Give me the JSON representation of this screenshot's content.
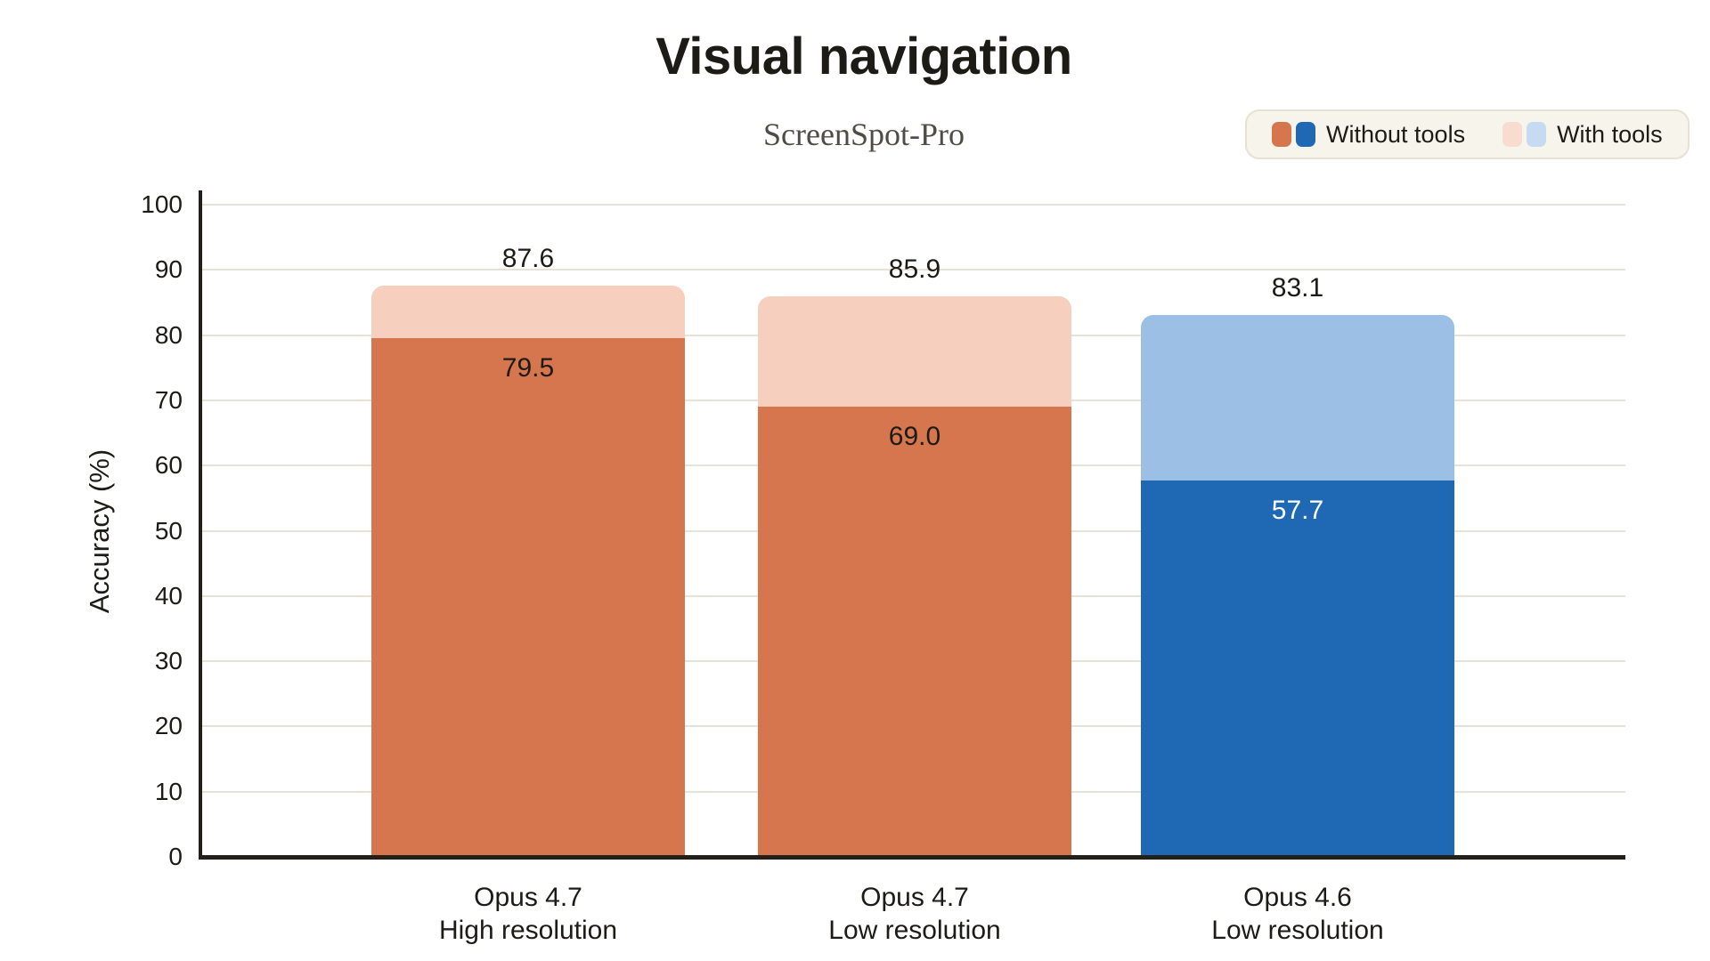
{
  "chart_data": {
    "type": "bar",
    "stacked": true,
    "title": "Visual navigation",
    "subtitle": "ScreenSpot-Pro",
    "xlabel": "",
    "ylabel": "Accuracy (%)",
    "ylim": [
      0,
      100
    ],
    "ytick_step": 10,
    "yticks": [
      0,
      10,
      20,
      30,
      40,
      50,
      60,
      70,
      80,
      90,
      100
    ],
    "grid": "horizontal",
    "legend_position": "top-right",
    "categories": [
      "Opus 4.7 High resolution",
      "Opus 4.7 Low resolution",
      "Opus 4.6 Low resolution"
    ],
    "series": [
      {
        "name": "Without tools",
        "values": [
          79.5,
          69.0,
          57.7
        ]
      },
      {
        "name": "With tools",
        "values": [
          87.6,
          85.9,
          83.1
        ],
        "note": "stacked bar total shown above each bar"
      }
    ],
    "bars": [
      {
        "id": "opus-4-7-high-resolution",
        "category_lines": [
          "Opus 4.7",
          "High resolution"
        ],
        "without_tools": 79.5,
        "with_tools_total": 87.6,
        "without_color": "#d5764f",
        "with_color": "#f6cfbf",
        "inner_label_color": "#1d1b16"
      },
      {
        "id": "opus-4-7-low-resolution",
        "category_lines": [
          "Opus 4.7",
          "Low resolution"
        ],
        "without_tools": 69.0,
        "with_tools_total": 85.9,
        "without_color": "#d5764f",
        "with_color": "#f6cfbf",
        "inner_label_color": "#1d1b16"
      },
      {
        "id": "opus-4-6-low-resolution",
        "category_lines": [
          "Opus 4.6",
          "Low resolution"
        ],
        "without_tools": 57.7,
        "with_tools_total": 83.1,
        "without_color": "#1f69b4",
        "with_color": "#9cc0e5",
        "inner_label_color": "#ffffff"
      }
    ],
    "legend": [
      {
        "label": "Without tools",
        "swatches": [
          {
            "name": "orange",
            "color": "#d5764f"
          },
          {
            "name": "blue",
            "color": "#1f69b4"
          }
        ]
      },
      {
        "label": "With tools",
        "swatches": [
          {
            "name": "light-orange",
            "color": "#f8dcd0"
          },
          {
            "name": "light-blue",
            "color": "#c6dbf1"
          }
        ]
      }
    ],
    "colors": {
      "background": "#ffffff",
      "grid": "#e5e2d7",
      "axis": "#222019",
      "text": "#1d1b16",
      "subtitle_text": "#4f4c44",
      "legend_bg": "#f7f4eb",
      "legend_border": "#e6e1d3"
    }
  }
}
